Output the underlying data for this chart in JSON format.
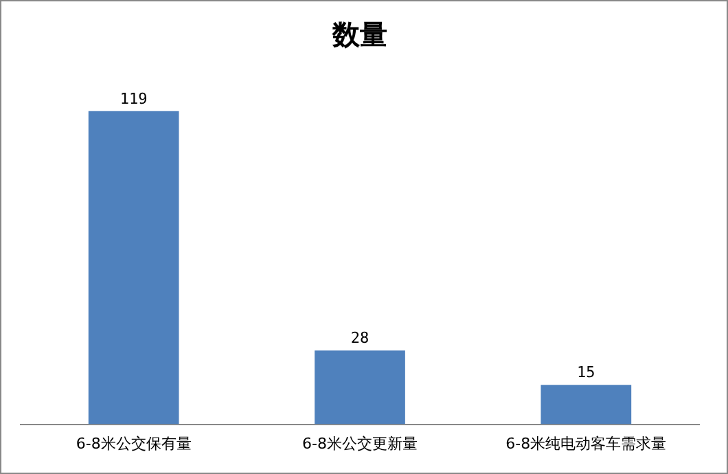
{
  "chart_data": {
    "type": "bar",
    "title": "数量",
    "categories": [
      "6-8米公交保有量",
      "6-8米公交更新量",
      "6-8米纯电动客车需求量"
    ],
    "values": [
      119,
      28,
      15
    ],
    "color": "#4f81bd",
    "data_labels": true,
    "grid": false,
    "legend": false
  }
}
